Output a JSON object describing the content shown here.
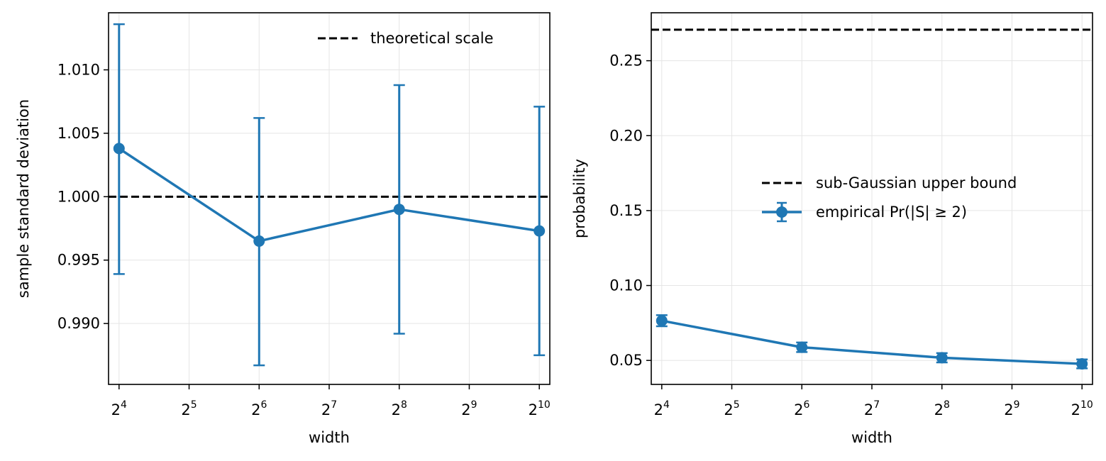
{
  "chart_data": [
    {
      "type": "line",
      "xlabel": "width",
      "ylabel": "sample standard deviation",
      "x_scale": "log2",
      "xlim_exp": [
        3.85,
        10.15
      ],
      "x_ticks": [
        {
          "base": "2",
          "exp": "4"
        },
        {
          "base": "2",
          "exp": "5"
        },
        {
          "base": "2",
          "exp": "6"
        },
        {
          "base": "2",
          "exp": "7"
        },
        {
          "base": "2",
          "exp": "8"
        },
        {
          "base": "2",
          "exp": "9"
        },
        {
          "base": "2",
          "exp": "10"
        }
      ],
      "ylim": [
        0.9852,
        1.0145
      ],
      "y_ticks": [
        "0.990",
        "0.995",
        "1.000",
        "1.005",
        "1.010"
      ],
      "grid": true,
      "legend_position": "top-right",
      "legend": [
        "theoretical scale"
      ],
      "reference_line": {
        "y": 1.0,
        "style": "dashed",
        "color": "#000000",
        "label": "theoretical scale"
      },
      "series": [
        {
          "color": "#1f77b4",
          "x": [
            16,
            64,
            256,
            1024
          ],
          "y": [
            1.0038,
            0.9965,
            0.999,
            0.9973
          ],
          "err_low": [
            0.9939,
            0.9867,
            0.9892,
            0.9875
          ],
          "err_high": [
            1.0136,
            1.0062,
            1.0088,
            1.0071
          ]
        }
      ]
    },
    {
      "type": "line",
      "xlabel": "width",
      "ylabel": "probability",
      "x_scale": "log2",
      "xlim_exp": [
        3.85,
        10.15
      ],
      "x_ticks": [
        {
          "base": "2",
          "exp": "4"
        },
        {
          "base": "2",
          "exp": "5"
        },
        {
          "base": "2",
          "exp": "6"
        },
        {
          "base": "2",
          "exp": "7"
        },
        {
          "base": "2",
          "exp": "8"
        },
        {
          "base": "2",
          "exp": "9"
        },
        {
          "base": "2",
          "exp": "10"
        }
      ],
      "ylim": [
        0.034,
        0.282
      ],
      "y_ticks": [
        "0.05",
        "0.10",
        "0.15",
        "0.20",
        "0.25"
      ],
      "grid": true,
      "legend_position": "center-right",
      "legend": [
        "sub-Gaussian upper bound",
        "empirical Pr(|S| ≥ 2)"
      ],
      "reference_line": {
        "y": 0.2707,
        "style": "dashed",
        "color": "#000000",
        "label": "sub-Gaussian upper bound"
      },
      "series": [
        {
          "name": "empirical Pr(|S| ≥ 2)",
          "color": "#1f77b4",
          "x": [
            16,
            64,
            256,
            1024
          ],
          "y": [
            0.0765,
            0.0588,
            0.0518,
            0.0477
          ],
          "err_low": [
            0.0728,
            0.0556,
            0.0487,
            0.0447
          ],
          "err_high": [
            0.0802,
            0.062,
            0.0549,
            0.0507
          ]
        }
      ]
    }
  ]
}
